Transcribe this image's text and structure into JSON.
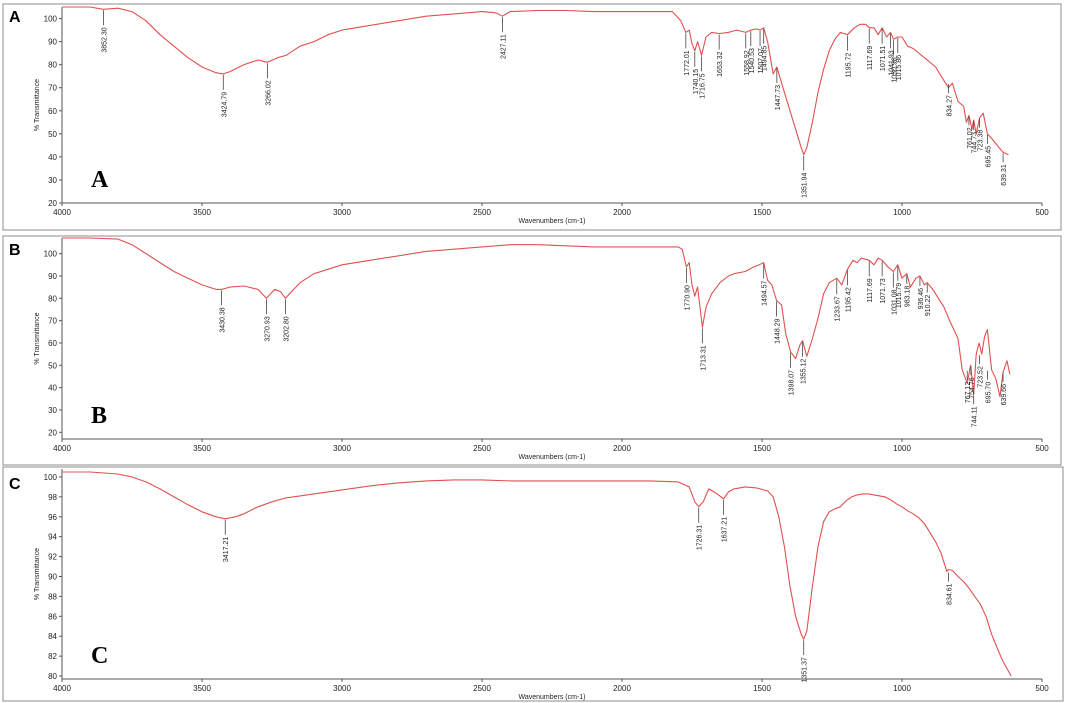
{
  "chart_data": [
    {
      "type": "line",
      "panel": "A",
      "corner_label": "A",
      "inner_label": "A",
      "xlabel": "Wavenumbers (cm-1)",
      "ylabel": "% Transmittance",
      "xlim": [
        4000,
        500
      ],
      "ylim": [
        20,
        105
      ],
      "xticks": [
        4000,
        3500,
        3000,
        2500,
        2000,
        1500,
        1000,
        500
      ],
      "yticks": [
        20,
        30,
        40,
        50,
        60,
        70,
        80,
        90,
        100
      ],
      "series": [
        {
          "x": [
            4000,
            3900,
            3852,
            3800,
            3750,
            3700,
            3650,
            3600,
            3550,
            3500,
            3450,
            3424,
            3400,
            3350,
            3300,
            3266,
            3230,
            3200,
            3150,
            3100,
            3050,
            3000,
            2900,
            2800,
            2700,
            2600,
            2500,
            2450,
            2427,
            2400,
            2300,
            2200,
            2100,
            2000,
            1900,
            1820,
            1790,
            1772,
            1760,
            1750,
            1740,
            1730,
            1716,
            1700,
            1680,
            1653,
            1620,
            1590,
            1558,
            1540,
            1520,
            1507,
            1494,
            1480,
            1460,
            1447,
            1420,
            1400,
            1380,
            1360,
            1351,
            1340,
            1320,
            1300,
            1280,
            1260,
            1240,
            1220,
            1195,
            1170,
            1150,
            1130,
            1117,
            1100,
            1085,
            1071,
            1055,
            1041,
            1030,
            1015,
            1000,
            980,
            960,
            940,
            920,
            900,
            880,
            860,
            834,
            820,
            800,
            780,
            770,
            761,
            750,
            744,
            735,
            723,
            710,
            695,
            680,
            660,
            639,
            620
          ],
          "y": [
            105,
            105,
            104,
            104.5,
            103,
            99,
            93,
            88,
            83,
            79,
            76.5,
            76,
            77,
            80,
            82,
            81,
            83,
            84,
            88,
            90,
            93,
            95,
            97,
            99,
            101,
            102,
            103,
            102.5,
            101,
            103,
            103.5,
            103.5,
            103,
            103,
            103,
            103,
            99,
            94,
            95,
            89,
            86,
            90,
            84,
            92,
            94,
            93.5,
            94,
            95,
            94,
            95,
            95.5,
            95,
            96,
            90,
            76,
            79,
            68,
            60,
            52,
            44,
            41,
            44,
            55,
            68,
            78,
            86,
            91,
            94,
            93,
            96,
            97.5,
            97.5,
            96,
            96,
            93,
            96,
            92,
            94,
            91,
            92,
            92,
            88,
            87,
            85,
            83,
            81,
            79,
            75,
            70,
            72,
            64,
            62,
            55,
            58,
            52,
            56,
            50,
            57,
            59,
            50,
            48,
            45,
            42,
            41
          ]
        }
      ],
      "peaks": [
        {
          "label": "3852.30",
          "x": 3852,
          "y": 104
        },
        {
          "label": "3424.79",
          "x": 3424,
          "y": 76
        },
        {
          "label": "3266.02",
          "x": 3266,
          "y": 81
        },
        {
          "label": "2427.11",
          "x": 2427,
          "y": 101
        },
        {
          "label": "1772.01",
          "x": 1772,
          "y": 94
        },
        {
          "label": "1740.15",
          "x": 1740,
          "y": 86
        },
        {
          "label": "1716.75",
          "x": 1716,
          "y": 84
        },
        {
          "label": "1653.32",
          "x": 1653,
          "y": 93.5
        },
        {
          "label": "1558.92",
          "x": 1558,
          "y": 94
        },
        {
          "label": "1540.53",
          "x": 1540,
          "y": 95
        },
        {
          "label": "1507.07",
          "x": 1507,
          "y": 95
        },
        {
          "label": "1494.85",
          "x": 1494,
          "y": 96
        },
        {
          "label": "1447.73",
          "x": 1447,
          "y": 79
        },
        {
          "label": "1351.94",
          "x": 1351,
          "y": 41
        },
        {
          "label": "1195.72",
          "x": 1195,
          "y": 93
        },
        {
          "label": "1117.69",
          "x": 1117,
          "y": 96
        },
        {
          "label": "1071.51",
          "x": 1071,
          "y": 96
        },
        {
          "label": "1041.93",
          "x": 1041,
          "y": 94
        },
        {
          "label": "1030.98",
          "x": 1030,
          "y": 91
        },
        {
          "label": "1015.86",
          "x": 1015,
          "y": 92
        },
        {
          "label": "834.27",
          "x": 834,
          "y": 72
        },
        {
          "label": "761.02",
          "x": 761,
          "y": 58
        },
        {
          "label": "744.73",
          "x": 744,
          "y": 56
        },
        {
          "label": "723.38",
          "x": 723,
          "y": 57
        },
        {
          "label": "695.45",
          "x": 695,
          "y": 50
        },
        {
          "label": "639.31",
          "x": 639,
          "y": 42
        }
      ]
    },
    {
      "type": "line",
      "panel": "B",
      "corner_label": "B",
      "inner_label": "B",
      "xlabel": "Wavenumbers (cm-1)",
      "ylabel": "% Transmittance",
      "xlim": [
        4000,
        500
      ],
      "ylim": [
        17,
        107
      ],
      "xticks": [
        4000,
        3500,
        3000,
        2500,
        2000,
        1500,
        1000,
        500
      ],
      "yticks": [
        20,
        30,
        40,
        50,
        60,
        70,
        80,
        90,
        100
      ],
      "series": [
        {
          "x": [
            4000,
            3900,
            3800,
            3750,
            3700,
            3650,
            3600,
            3550,
            3500,
            3450,
            3430,
            3400,
            3350,
            3300,
            3270,
            3240,
            3220,
            3202,
            3180,
            3150,
            3100,
            3050,
            3000,
            2900,
            2800,
            2700,
            2600,
            2500,
            2400,
            2300,
            2200,
            2100,
            2000,
            1900,
            1800,
            1785,
            1770,
            1760,
            1750,
            1740,
            1730,
            1713,
            1700,
            1680,
            1650,
            1620,
            1600,
            1560,
            1530,
            1510,
            1494,
            1480,
            1465,
            1448,
            1430,
            1415,
            1398,
            1380,
            1365,
            1355,
            1340,
            1320,
            1300,
            1280,
            1260,
            1233,
            1215,
            1195,
            1175,
            1160,
            1145,
            1117,
            1100,
            1085,
            1071,
            1050,
            1031,
            1015,
            1000,
            983,
            970,
            950,
            936,
            920,
            910,
            890,
            870,
            850,
            830,
            800,
            785,
            767,
            755,
            744,
            735,
            725,
            715,
            705,
            695,
            680,
            665,
            650,
            639,
            625,
            615
          ],
          "y": [
            107,
            107,
            106.5,
            104,
            100,
            96,
            92,
            89,
            86,
            84,
            84,
            85,
            85.5,
            84,
            80,
            84,
            83,
            80,
            83,
            87,
            91,
            93,
            95,
            97,
            99,
            101,
            102,
            103,
            104,
            104,
            103.5,
            103,
            103,
            103,
            103,
            102,
            94,
            96,
            86,
            81,
            85,
            67,
            76,
            82,
            87,
            90,
            91,
            92,
            94,
            95,
            96,
            88,
            86,
            79,
            77,
            64,
            56,
            53,
            59,
            61,
            54,
            62,
            71,
            82,
            87,
            89,
            86,
            93,
            97,
            96,
            98,
            97,
            95,
            98,
            97,
            94,
            92,
            95,
            89,
            91,
            85,
            89,
            90,
            86,
            87,
            84,
            80,
            76,
            70,
            62,
            48,
            42,
            50,
            37,
            55,
            60,
            55,
            63,
            66,
            48,
            44,
            36,
            47,
            52,
            46
          ]
        }
      ],
      "peaks": [
        {
          "label": "3430.38",
          "x": 3430,
          "y": 84
        },
        {
          "label": "3270.93",
          "x": 3270,
          "y": 80
        },
        {
          "label": "3202.80",
          "x": 3202,
          "y": 80
        },
        {
          "label": "1770.90",
          "x": 1770,
          "y": 94
        },
        {
          "label": "1713.31",
          "x": 1713,
          "y": 67
        },
        {
          "label": "1494.57",
          "x": 1494,
          "y": 96
        },
        {
          "label": "1448.29",
          "x": 1448,
          "y": 79
        },
        {
          "label": "1398.07",
          "x": 1398,
          "y": 56
        },
        {
          "label": "1355.12",
          "x": 1355,
          "y": 61
        },
        {
          "label": "1233.67",
          "x": 1233,
          "y": 89
        },
        {
          "label": "1195.42",
          "x": 1195,
          "y": 93
        },
        {
          "label": "1117.69",
          "x": 1117,
          "y": 97
        },
        {
          "label": "1071.73",
          "x": 1071,
          "y": 97
        },
        {
          "label": "1031.08",
          "x": 1031,
          "y": 92
        },
        {
          "label": "1015.79",
          "x": 1015,
          "y": 95
        },
        {
          "label": "983.18",
          "x": 983,
          "y": 91
        },
        {
          "label": "936.46",
          "x": 936,
          "y": 90
        },
        {
          "label": "910.22",
          "x": 910,
          "y": 87
        },
        {
          "label": "767.12",
          "x": 767,
          "y": 48
        },
        {
          "label": "744.11",
          "x": 744,
          "y": 37
        },
        {
          "label": "754.76",
          "x": 754,
          "y": 50
        },
        {
          "label": "723.52",
          "x": 723,
          "y": 55
        },
        {
          "label": "695.70",
          "x": 695,
          "y": 48
        },
        {
          "label": "639.66",
          "x": 639,
          "y": 47
        }
      ]
    },
    {
      "type": "line",
      "panel": "C",
      "corner_label": "C",
      "inner_label": "C",
      "xlabel": "Wavenumbers (cm-1)",
      "ylabel": "% Transmittance",
      "xlim": [
        4000,
        500
      ],
      "ylim": [
        79.7,
        100.8
      ],
      "xticks": [
        4000,
        3500,
        3000,
        2500,
        2000,
        1500,
        1000,
        500
      ],
      "yticks": [
        80,
        82,
        84,
        86,
        88,
        90,
        92,
        94,
        96,
        98,
        100
      ],
      "series": [
        {
          "x": [
            4000,
            3900,
            3800,
            3750,
            3700,
            3650,
            3600,
            3550,
            3500,
            3450,
            3417,
            3380,
            3350,
            3300,
            3250,
            3200,
            3100,
            3000,
            2900,
            2800,
            2700,
            2600,
            2500,
            2400,
            2300,
            2200,
            2100,
            2000,
            1900,
            1800,
            1760,
            1740,
            1726,
            1710,
            1690,
            1660,
            1637,
            1620,
            1600,
            1560,
            1520,
            1480,
            1460,
            1440,
            1420,
            1400,
            1380,
            1360,
            1351,
            1340,
            1320,
            1300,
            1280,
            1260,
            1240,
            1220,
            1200,
            1180,
            1160,
            1140,
            1120,
            1100,
            1080,
            1060,
            1040,
            1020,
            1000,
            980,
            960,
            940,
            920,
            900,
            880,
            860,
            840,
            834,
            820,
            800,
            780,
            760,
            740,
            720,
            700,
            680,
            660,
            640,
            620,
            610
          ],
          "y": [
            100.5,
            100.5,
            100.3,
            100,
            99.5,
            98.8,
            98,
            97.2,
            96.5,
            96,
            95.8,
            96,
            96.3,
            97,
            97.5,
            97.9,
            98.3,
            98.7,
            99.1,
            99.4,
            99.6,
            99.7,
            99.7,
            99.6,
            99.6,
            99.6,
            99.6,
            99.6,
            99.6,
            99.5,
            99,
            97.5,
            97,
            97.5,
            98.8,
            98.3,
            97.8,
            98.5,
            98.8,
            99,
            98.9,
            98.6,
            98,
            96,
            93,
            89,
            86,
            84.2,
            83.7,
            84.5,
            89,
            93,
            95.5,
            96.5,
            96.8,
            97,
            97.6,
            98,
            98.2,
            98.3,
            98.3,
            98.2,
            98.1,
            98,
            97.7,
            97.3,
            97,
            96.6,
            96.3,
            95.9,
            95.3,
            94.4,
            93.5,
            92.3,
            90.5,
            90.7,
            90.6,
            90,
            89.5,
            88.8,
            88,
            87.2,
            86,
            84.2,
            82.8,
            81.5,
            80.5,
            80
          ]
        }
      ],
      "peaks": [
        {
          "label": "3417.21",
          "x": 3417,
          "y": 95.8
        },
        {
          "label": "1726.31",
          "x": 1726,
          "y": 97
        },
        {
          "label": "1637.21",
          "x": 1637,
          "y": 97.8
        },
        {
          "label": "1351.37",
          "x": 1351,
          "y": 83.7
        },
        {
          "label": "834.61",
          "x": 834,
          "y": 90.5
        }
      ]
    }
  ]
}
